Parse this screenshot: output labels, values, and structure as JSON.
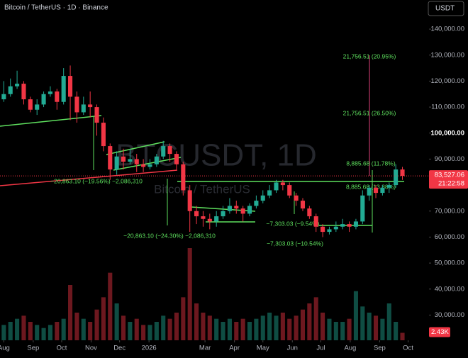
{
  "header": {
    "title": "Bitcoin / TetherUS · 1D · Binance",
    "currency_button": "USDT"
  },
  "watermark": {
    "symbol": "BTCUSDT, 1D",
    "name": "Bitcoin / TetherUS"
  },
  "chart_data": {
    "type": "candlestick",
    "x": [
      0,
      7,
      14,
      21,
      28,
      35,
      42,
      49,
      56,
      63,
      70,
      77,
      84,
      91,
      98,
      105,
      112,
      119,
      126,
      133,
      140,
      147,
      154,
      161,
      168,
      175,
      182,
      189,
      196,
      203,
      210,
      217,
      224,
      231,
      238,
      245,
      252,
      259,
      266,
      273,
      280,
      287,
      294,
      301,
      308,
      315,
      322,
      329,
      336,
      343,
      350,
      357,
      364,
      371,
      378,
      385,
      392,
      399,
      406,
      413,
      420
    ],
    "candles": [
      [
        113000,
        120000,
        112000,
        115000
      ],
      [
        115000,
        121000,
        114000,
        118000
      ],
      [
        118000,
        124000,
        117000,
        119000
      ],
      [
        119000,
        120000,
        111000,
        113000
      ],
      [
        113000,
        114000,
        108000,
        109000
      ],
      [
        109000,
        113000,
        107000,
        111000
      ],
      [
        111000,
        116000,
        110000,
        115000
      ],
      [
        115000,
        118000,
        114000,
        116000
      ],
      [
        116000,
        117000,
        109000,
        112000
      ],
      [
        112000,
        125000,
        111000,
        122000
      ],
      [
        122000,
        126000,
        105000,
        114000
      ],
      [
        114000,
        116000,
        104000,
        108000
      ],
      [
        108000,
        114000,
        107000,
        111000
      ],
      [
        111000,
        116000,
        106000,
        110000
      ],
      [
        110000,
        111000,
        99000,
        104000
      ],
      [
        104000,
        106000,
        93000,
        95000
      ],
      [
        95000,
        96000,
        82000,
        86000
      ],
      [
        86000,
        93000,
        84000,
        91000
      ],
      [
        91000,
        94000,
        86000,
        89000
      ],
      [
        89000,
        94000,
        88000,
        90000
      ],
      [
        90000,
        92000,
        85000,
        88000
      ],
      [
        88000,
        90000,
        85000,
        87000
      ],
      [
        87000,
        90000,
        86000,
        88000
      ],
      [
        88000,
        92000,
        87000,
        91000
      ],
      [
        91000,
        97000,
        90000,
        95000
      ],
      [
        95000,
        96000,
        89000,
        92000
      ],
      [
        92000,
        93000,
        86000,
        88000
      ],
      [
        88000,
        89000,
        76000,
        78000
      ],
      [
        78000,
        80000,
        62000,
        70000
      ],
      [
        70000,
        72000,
        65000,
        68000
      ],
      [
        68000,
        70000,
        64000,
        67000
      ],
      [
        67000,
        69000,
        63000,
        66000
      ],
      [
        66000,
        70000,
        64000,
        68000
      ],
      [
        68000,
        72000,
        67000,
        70000
      ],
      [
        70000,
        75000,
        69000,
        72000
      ],
      [
        72000,
        74000,
        69000,
        71000
      ],
      [
        71000,
        72000,
        66000,
        69000
      ],
      [
        69000,
        73000,
        68000,
        72000
      ],
      [
        72000,
        76000,
        71000,
        74000
      ],
      [
        74000,
        78000,
        73000,
        76000
      ],
      [
        76000,
        80000,
        75000,
        78000
      ],
      [
        78000,
        82000,
        77000,
        81000
      ],
      [
        81000,
        82000,
        78000,
        80000
      ],
      [
        80000,
        81000,
        75000,
        76000
      ],
      [
        76000,
        77000,
        72000,
        74000
      ],
      [
        74000,
        75000,
        70000,
        71000
      ],
      [
        71000,
        72000,
        67000,
        68000
      ],
      [
        68000,
        69000,
        62000,
        64000
      ],
      [
        64000,
        65000,
        60000,
        62000
      ],
      [
        62000,
        64000,
        61000,
        63000
      ],
      [
        63000,
        66000,
        62000,
        64000
      ],
      [
        64000,
        67000,
        63000,
        65000
      ],
      [
        65000,
        66000,
        62000,
        64000
      ],
      [
        64000,
        67000,
        63000,
        66000
      ],
      [
        66000,
        78000,
        65000,
        76000
      ],
      [
        76000,
        80000,
        74000,
        79000
      ],
      [
        79000,
        80000,
        75000,
        77000
      ],
      [
        77000,
        80000,
        76000,
        79000
      ],
      [
        79000,
        81000,
        77000,
        80000
      ],
      [
        80000,
        88000,
        79000,
        86000
      ],
      [
        86000,
        87000,
        82000,
        83527.06
      ]
    ],
    "volume": [
      5,
      6,
      7,
      8,
      6,
      5,
      4,
      5,
      6,
      7,
      18,
      9,
      7,
      6,
      10,
      14,
      22,
      12,
      8,
      6,
      7,
      5,
      5,
      6,
      8,
      7,
      9,
      14,
      30,
      12,
      9,
      8,
      7,
      6,
      7,
      6,
      7,
      6,
      7,
      8,
      9,
      8,
      9,
      7,
      8,
      10,
      12,
      14,
      9,
      7,
      6,
      6,
      7,
      16,
      11,
      9,
      8,
      7,
      12,
      6,
      2.43
    ],
    "up_color": "#22ab94",
    "down_color": "#f23645",
    "xlim": [
      -4,
      448
    ],
    "xticks": [
      {
        "value": 0,
        "label": "Aug"
      },
      {
        "value": 31,
        "label": "Sep"
      },
      {
        "value": 61,
        "label": "Oct"
      },
      {
        "value": 92,
        "label": "Nov"
      },
      {
        "value": 122,
        "label": "Dec"
      },
      {
        "value": 153,
        "label": "2026"
      },
      {
        "value": 212,
        "label": "Mar"
      },
      {
        "value": 243,
        "label": "Apr"
      },
      {
        "value": 273,
        "label": "May"
      },
      {
        "value": 304,
        "label": "Jun"
      },
      {
        "value": 334,
        "label": "Jul"
      },
      {
        "value": 365,
        "label": "Aug"
      },
      {
        "value": 396,
        "label": "Sep"
      },
      {
        "value": 426,
        "label": "Oct"
      }
    ],
    "ylim": [
      20300,
      151200
    ],
    "yticks": [
      {
        "value": 30000,
        "label": "30,000.00"
      },
      {
        "value": 40000,
        "label": "40,000.00"
      },
      {
        "value": 50000,
        "label": "50,000.00"
      },
      {
        "value": 60000,
        "label": "60,000.00"
      },
      {
        "value": 70000,
        "label": "70,000.00"
      },
      {
        "value": 80000,
        "label": "80,000.00"
      },
      {
        "value": 90000,
        "label": "90,000.00"
      },
      {
        "value": 100000,
        "label": "100,000.00"
      },
      {
        "value": 110000,
        "label": "110,000.00"
      },
      {
        "value": 120000,
        "label": "120,000.00"
      },
      {
        "value": 130000,
        "label": "130,000.00"
      },
      {
        "value": 140000,
        "label": "140,000.00"
      }
    ],
    "price_tag": {
      "value": 83527.06,
      "label": "83,527.06",
      "countdown": "21:22:58"
    },
    "volume_tag": {
      "value": 2.43,
      "label": "2.43K"
    },
    "annotations": [
      "21,756.51 (20.95%)",
      "21,756.51 (26.50%)",
      "8,885.68 (11.78%)",
      "8,885.68 (13.88%)",
      "−20,863.10 (−19.56%) −2,086,310",
      "−20,863.10 (−24.30%) −2,086,310",
      "−7,303.03 (−9.54%)",
      "−7,303.03 (−10.54%)"
    ]
  }
}
